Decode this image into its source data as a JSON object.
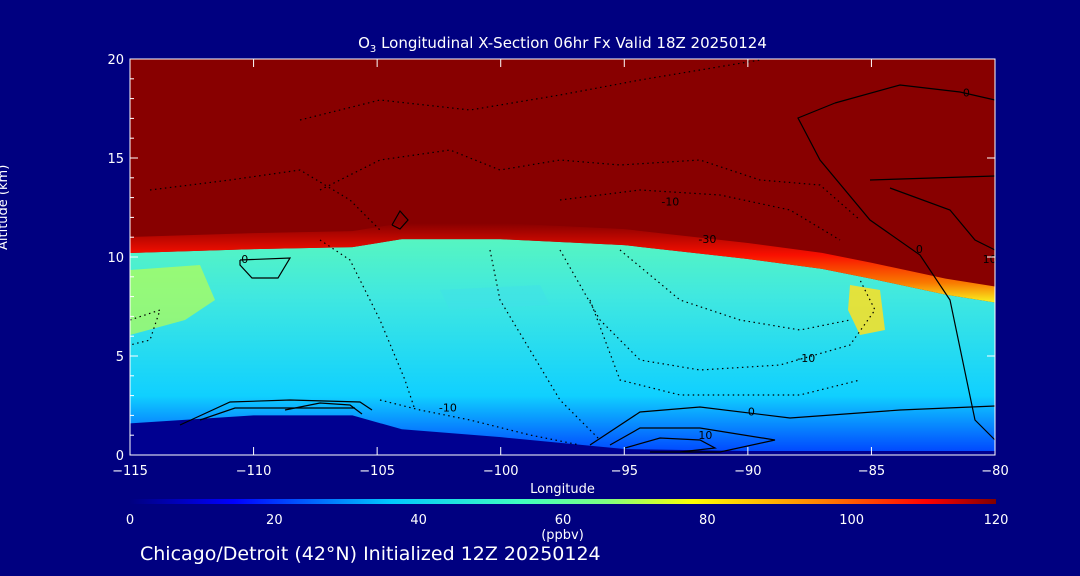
{
  "chart_data": {
    "type": "heatmap",
    "title_main": "O",
    "title_sub": "3",
    "title_rest": " Longitudinal X-Section 06hr  Fx Valid 18Z 20250124",
    "xlabel": "Longitude",
    "ylabel": "Altitude (km)",
    "xlim": [
      -115,
      -80
    ],
    "ylim": [
      0,
      20
    ],
    "xticks": [
      "-115",
      "-110",
      "-105",
      "-100",
      "-95",
      "-90",
      "-85",
      "-80"
    ],
    "xtick_values": [
      -115,
      -110,
      -105,
      -100,
      -95,
      -90,
      -85,
      -80
    ],
    "yticks": [
      "0",
      "5",
      "10",
      "15",
      "20"
    ],
    "ytick_values": [
      0,
      5,
      10,
      15,
      20
    ],
    "colorbar": {
      "label": "(ppbv)",
      "range": [
        0,
        120
      ],
      "ticks": [
        "0",
        "20",
        "40",
        "60",
        "80",
        "100",
        "120"
      ],
      "tick_values": [
        0,
        20,
        40,
        60,
        80,
        100,
        120
      ]
    },
    "tropopause_altitude_km": [
      {
        "lon": -115,
        "alt": 10.2
      },
      {
        "lon": -110,
        "alt": 10.4
      },
      {
        "lon": -106,
        "alt": 10.5
      },
      {
        "lon": -104,
        "alt": 10.9
      },
      {
        "lon": -100,
        "alt": 10.9
      },
      {
        "lon": -95,
        "alt": 10.6
      },
      {
        "lon": -90,
        "alt": 9.9
      },
      {
        "lon": -87,
        "alt": 9.4
      },
      {
        "lon": -85,
        "alt": 8.9
      },
      {
        "lon": -82,
        "alt": 8.1
      },
      {
        "lon": -80,
        "alt": 7.7
      }
    ],
    "terrain_altitude_km": [
      {
        "lon": -115,
        "alt": 1.6
      },
      {
        "lon": -110,
        "alt": 2.0
      },
      {
        "lon": -106,
        "alt": 2.0
      },
      {
        "lon": -104,
        "alt": 1.3
      },
      {
        "lon": -100,
        "alt": 0.9
      },
      {
        "lon": -95,
        "alt": 0.3
      },
      {
        "lon": -90,
        "alt": 0.2
      },
      {
        "lon": -85,
        "alt": 0.2
      },
      {
        "lon": -80,
        "alt": 0.2
      }
    ],
    "contour_labels": [
      {
        "text": "0",
        "lon": -81.3,
        "alt": 18.1
      },
      {
        "text": "-10",
        "lon": -93.5,
        "alt": 12.6
      },
      {
        "text": "-30",
        "lon": -92.0,
        "alt": 10.7
      },
      {
        "text": "0",
        "lon": -83.2,
        "alt": 10.2
      },
      {
        "text": "10",
        "lon": -80.5,
        "alt": 9.7
      },
      {
        "text": "0",
        "lon": -110.5,
        "alt": 9.7
      },
      {
        "text": "-10",
        "lon": -88.0,
        "alt": 4.7
      },
      {
        "text": "-10",
        "lon": -102.5,
        "alt": 2.2
      },
      {
        "text": "0",
        "lon": -90.0,
        "alt": 2.0
      },
      {
        "text": "10",
        "lon": -92.0,
        "alt": 0.8
      }
    ]
  },
  "footer": "Chicago/Detroit (42°N) Initialized 12Z 20250124"
}
